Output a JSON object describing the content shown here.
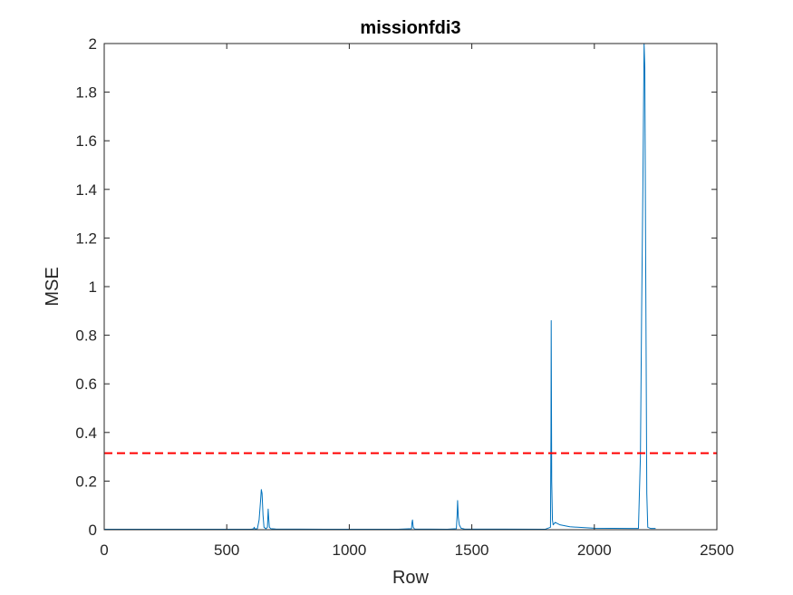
{
  "chart_data": {
    "type": "line",
    "title": "missionfdi3",
    "xlabel": "Row",
    "ylabel": "MSE",
    "xlim": [
      0,
      2500
    ],
    "ylim": [
      0,
      2
    ],
    "xticks": [
      0,
      500,
      1000,
      1500,
      2000,
      2500
    ],
    "yticks": [
      0,
      0.2,
      0.4,
      0.6,
      0.8,
      1,
      1.2,
      1.4,
      1.6,
      1.8,
      2
    ],
    "xtick_labels": [
      "0",
      "500",
      "1000",
      "1500",
      "2000",
      "2500"
    ],
    "ytick_labels": [
      "0",
      "0.2",
      "0.4",
      "0.6",
      "0.8",
      "1",
      "1.2",
      "1.4",
      "1.6",
      "1.8",
      "2"
    ],
    "grid": false,
    "series": [
      {
        "color": "#0072BD",
        "points": [
          [
            0,
            0.002
          ],
          [
            300,
            0.002
          ],
          [
            600,
            0.002
          ],
          [
            610,
            0.004
          ],
          [
            612,
            0.01
          ],
          [
            615,
            0.003
          ],
          [
            625,
            0.004
          ],
          [
            632,
            0.04
          ],
          [
            638,
            0.12
          ],
          [
            641,
            0.165
          ],
          [
            644,
            0.15
          ],
          [
            648,
            0.06
          ],
          [
            652,
            0.01
          ],
          [
            660,
            0.004
          ],
          [
            666,
            0.01
          ],
          [
            669,
            0.085
          ],
          [
            671,
            0.05
          ],
          [
            674,
            0.01
          ],
          [
            680,
            0.004
          ],
          [
            700,
            0.003
          ],
          [
            900,
            0.002
          ],
          [
            1200,
            0.002
          ],
          [
            1254,
            0.004
          ],
          [
            1256,
            0.03
          ],
          [
            1258,
            0.04
          ],
          [
            1261,
            0.01
          ],
          [
            1266,
            0.003
          ],
          [
            1400,
            0.002
          ],
          [
            1437,
            0.004
          ],
          [
            1440,
            0.06
          ],
          [
            1442,
            0.12
          ],
          [
            1445,
            0.05
          ],
          [
            1449,
            0.02
          ],
          [
            1456,
            0.006
          ],
          [
            1470,
            0.003
          ],
          [
            1800,
            0.002
          ],
          [
            1821,
            0.01
          ],
          [
            1823,
            0.4
          ],
          [
            1824,
            0.86
          ],
          [
            1826,
            0.2
          ],
          [
            1829,
            0.04
          ],
          [
            1832,
            0.02
          ],
          [
            1840,
            0.03
          ],
          [
            1860,
            0.02
          ],
          [
            1900,
            0.012
          ],
          [
            2000,
            0.006
          ],
          [
            2150,
            0.005
          ],
          [
            2180,
            0.005
          ],
          [
            2188,
            0.3
          ],
          [
            2193,
            0.9
          ],
          [
            2198,
            1.4
          ],
          [
            2203,
            2.0
          ],
          [
            2206,
            1.9
          ],
          [
            2210,
            1.0
          ],
          [
            2214,
            0.15
          ],
          [
            2218,
            0.01
          ],
          [
            2230,
            0.005
          ],
          [
            2250,
            0.005
          ]
        ]
      },
      {
        "color": "#FF0000",
        "style": "dashed",
        "points": [
          [
            0,
            0.315
          ],
          [
            2500,
            0.315
          ]
        ]
      }
    ]
  }
}
